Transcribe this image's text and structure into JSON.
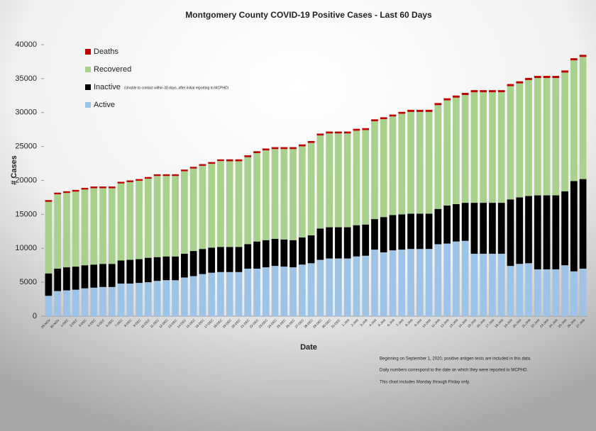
{
  "chart_data": {
    "type": "stacked_bar",
    "title": "Montgomery County COVID-19 Positive Cases  - Last 60 Days",
    "xlabel": "Date",
    "ylabel": "# Cases",
    "inactive_note": "(Unable to contact within 30 days, after initial reporting to MCPHD)",
    "notes": [
      "Beginning on September 1, 2020, positive antigen tests are included in this data.",
      "Daily numbers correspond to the date on which they were reported to MCPHD.",
      "This chart includes Monday through Firday only."
    ],
    "categories": [
      "29-NOV",
      "30-NOV",
      "1-DEC",
      "2-DEC",
      "3-DEC",
      "4-DEC",
      "5-DEC",
      "6-DEC",
      "7-DEC",
      "8-DEC",
      "9-DEC",
      "10-DEC",
      "11-DEC",
      "12-DEC",
      "13-DEC",
      "14-DEC",
      "15-DEC",
      "16-DEC",
      "17-DEC",
      "18-DEC",
      "19-DEC",
      "20-DEC",
      "21-DEC",
      "22-DEC",
      "23-DEC",
      "24-DEC",
      "25-DEC",
      "26-DEC",
      "27-DEC",
      "28-DEC",
      "29-DEC",
      "30-DEC",
      "31-DEC",
      "1-JAN",
      "2-JAN",
      "3-JAN",
      "4-JAN",
      "5-JAN",
      "6-JAN",
      "7-JAN",
      "8-JAN",
      "9-JAN",
      "10-JAN",
      "11-JAN",
      "12-JAN",
      "13-JAN",
      "14-JAN",
      "15-JAN",
      "16-JAN",
      "17-JAN",
      "18-JAN",
      "19-JAN",
      "20-JAN",
      "21-JAN",
      "22-JAN",
      "23-JAN",
      "24-JAN",
      "25-JAN",
      "26-JAN",
      "27-JAN"
    ],
    "series": [
      {
        "name": "Active",
        "color": "#9dc3e6",
        "values": [
          3000,
          3700,
          3800,
          3900,
          4100,
          4200,
          4300,
          4300,
          4800,
          4800,
          4900,
          5000,
          5200,
          5300,
          5300,
          5700,
          5900,
          6200,
          6400,
          6500,
          6500,
          6500,
          7000,
          7000,
          7200,
          7400,
          7300,
          7200,
          7600,
          7800,
          8300,
          8500,
          8500,
          8500,
          8800,
          8900,
          9800,
          9400,
          9700,
          9800,
          9900,
          9900,
          9900,
          10600,
          10700,
          11000,
          11100,
          9200,
          9200,
          9200,
          9200,
          7400,
          7700,
          7800,
          6900,
          6900,
          6900,
          7500,
          6600,
          7000
        ]
      },
      {
        "name": "Inactive",
        "color": "#000000",
        "values": [
          3300,
          3300,
          3400,
          3400,
          3400,
          3400,
          3400,
          3400,
          3400,
          3500,
          3500,
          3600,
          3500,
          3500,
          3500,
          3500,
          3700,
          3700,
          3700,
          3700,
          3700,
          3700,
          3600,
          4000,
          4000,
          4000,
          4000,
          4000,
          4000,
          4100,
          4600,
          4600,
          4600,
          4600,
          4600,
          4600,
          4500,
          5200,
          5200,
          5200,
          5200,
          5200,
          5200,
          5200,
          5600,
          5500,
          5600,
          7500,
          7500,
          7500,
          7500,
          9800,
          9800,
          9900,
          10900,
          10900,
          10900,
          10900,
          13300,
          13200
        ]
      },
      {
        "name": "Recovered",
        "color": "#a9d18e",
        "values": [
          10550,
          10950,
          10950,
          11050,
          11150,
          11250,
          11150,
          11150,
          11350,
          11450,
          11550,
          11650,
          11950,
          11850,
          11850,
          12150,
          12150,
          12250,
          12350,
          12650,
          12620,
          12620,
          12820,
          13020,
          13220,
          13220,
          13320,
          13420,
          13420,
          13620,
          13720,
          13820,
          13820,
          13820,
          13920,
          13920,
          14420,
          14420,
          14520,
          14820,
          14990,
          14990,
          14990,
          15290,
          15490,
          15690,
          15890,
          16290,
          16290,
          16290,
          16290,
          16690,
          16790,
          17090,
          17290,
          17290,
          17290,
          17490,
          17790,
          17990
        ]
      },
      {
        "name": "Deaths",
        "color": "#c00000",
        "values": [
          250,
          250,
          250,
          250,
          250,
          250,
          250,
          250,
          250,
          250,
          250,
          250,
          250,
          250,
          250,
          250,
          250,
          250,
          250,
          250,
          280,
          280,
          280,
          280,
          280,
          280,
          280,
          280,
          280,
          280,
          280,
          280,
          280,
          280,
          280,
          280,
          280,
          280,
          280,
          280,
          310,
          310,
          310,
          310,
          310,
          310,
          310,
          310,
          310,
          310,
          310,
          310,
          310,
          310,
          310,
          310,
          310,
          310,
          310,
          310
        ]
      }
    ],
    "ylim": [
      0,
      40000
    ],
    "yticks": [
      0,
      5000,
      10000,
      15000,
      20000,
      25000,
      30000,
      35000,
      40000
    ],
    "grid": false
  }
}
